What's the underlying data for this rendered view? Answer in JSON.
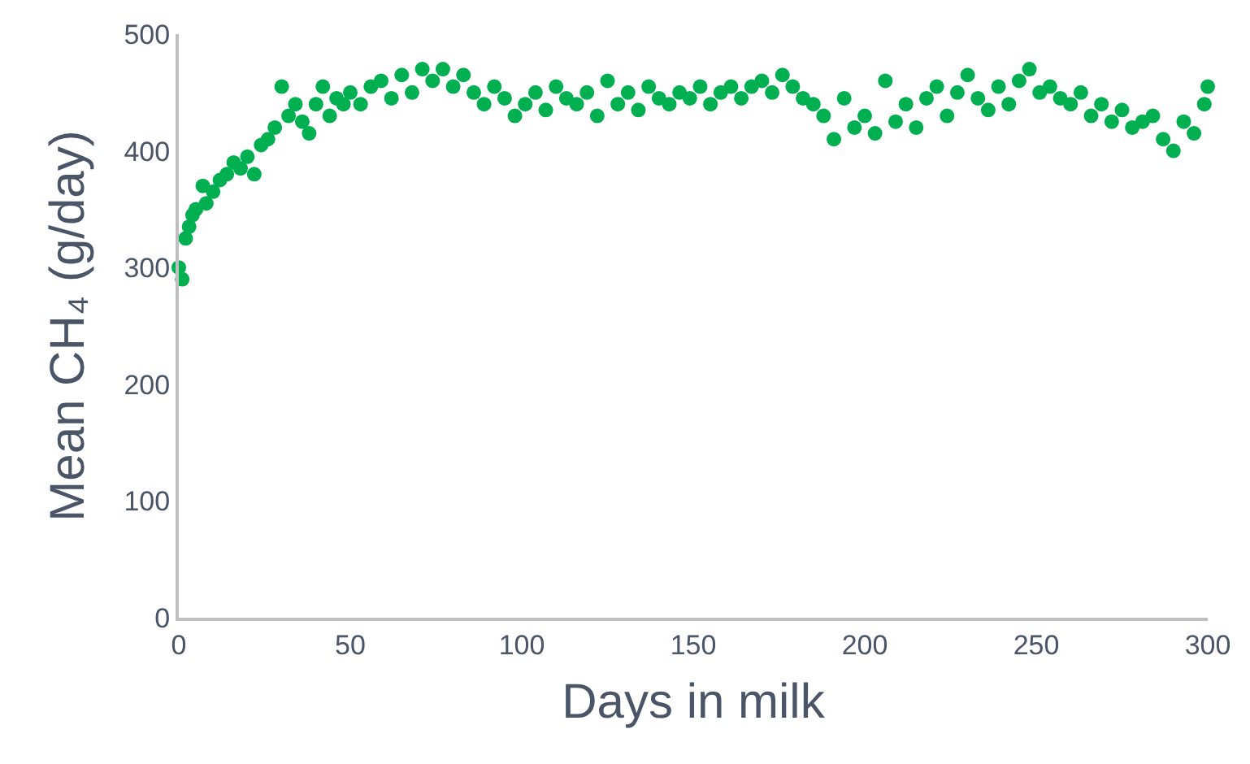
{
  "chart_data": {
    "type": "scatter",
    "xlabel": "Days in milk",
    "ylabel": "Mean CH₄ (g/day)",
    "xlim": [
      0,
      300
    ],
    "xticks": [
      0,
      50,
      100,
      150,
      200,
      250,
      300
    ],
    "ylim": [
      0,
      500
    ],
    "yticks": [
      0,
      100,
      200,
      300,
      400,
      500
    ],
    "marker": "circle",
    "x": [
      0,
      1,
      2,
      3,
      4,
      5,
      7,
      8,
      10,
      12,
      14,
      16,
      18,
      20,
      22,
      24,
      26,
      28,
      30,
      32,
      34,
      36,
      38,
      40,
      42,
      44,
      46,
      48,
      50,
      53,
      56,
      59,
      62,
      65,
      68,
      71,
      74,
      77,
      80,
      83,
      86,
      89,
      92,
      95,
      98,
      101,
      104,
      107,
      110,
      113,
      116,
      119,
      122,
      125,
      128,
      131,
      134,
      137,
      140,
      143,
      146,
      149,
      152,
      155,
      158,
      161,
      164,
      167,
      170,
      173,
      176,
      179,
      182,
      185,
      188,
      191,
      194,
      197,
      200,
      203,
      206,
      209,
      212,
      215,
      218,
      221,
      224,
      227,
      230,
      233,
      236,
      239,
      242,
      245,
      248,
      251,
      254,
      257,
      260,
      263,
      266,
      269,
      272,
      275,
      278,
      281,
      284,
      287,
      290,
      293,
      296,
      299,
      300
    ],
    "series": [
      {
        "color": "#00b050",
        "values": [
          300,
          290,
          325,
          335,
          345,
          350,
          370,
          355,
          365,
          375,
          380,
          390,
          385,
          395,
          380,
          405,
          410,
          420,
          455,
          430,
          440,
          425,
          415,
          440,
          455,
          430,
          445,
          440,
          450,
          440,
          455,
          460,
          445,
          465,
          450,
          470,
          460,
          470,
          455,
          465,
          450,
          440,
          455,
          445,
          430,
          440,
          450,
          435,
          455,
          445,
          440,
          450,
          430,
          460,
          440,
          450,
          435,
          455,
          445,
          440,
          450,
          445,
          455,
          440,
          450,
          455,
          445,
          455,
          460,
          450,
          465,
          455,
          445,
          440,
          430,
          410,
          445,
          420,
          430,
          415,
          460,
          425,
          440,
          420,
          445,
          455,
          430,
          450,
          465,
          445,
          435,
          455,
          440,
          460,
          470,
          450,
          455,
          445,
          440,
          450,
          430,
          440,
          425,
          435,
          420,
          425,
          430,
          410,
          400,
          425,
          415,
          440,
          455
        ]
      }
    ]
  }
}
